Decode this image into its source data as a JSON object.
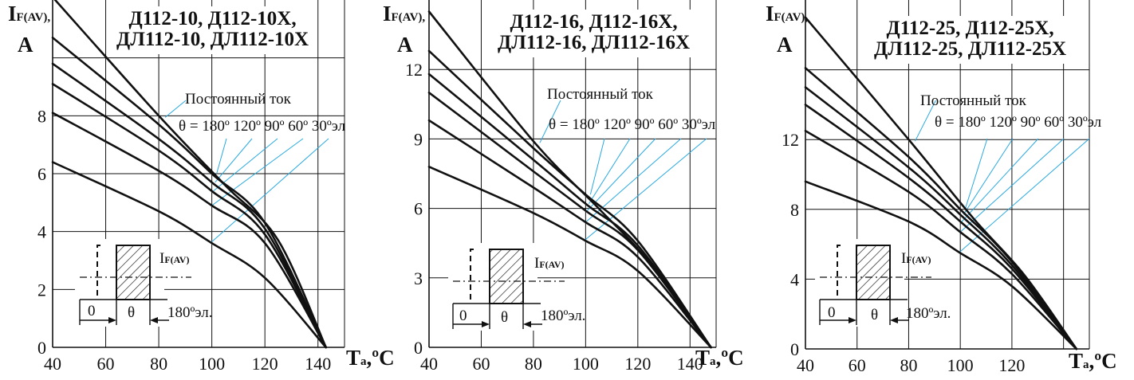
{
  "colors": {
    "curve": "#111111",
    "grid": "#111111",
    "guide": "#29a9e0"
  },
  "chart_data": [
    {
      "type": "line",
      "title_lines": [
        "Д112-10, Д112-10Х,",
        "ДЛ112-10, ДЛ112-10Х"
      ],
      "ylabel_main": "I",
      "ylabel_sub": "F(AV),",
      "ylabel_unit": "A",
      "xlabel_main": "T",
      "xlabel_sub": "a",
      "xlabel_unit": ",ºC",
      "xlim": [
        40,
        150
      ],
      "ylim": [
        0,
        12
      ],
      "xticks": [
        "40",
        "60",
        "80",
        "100",
        "120",
        "140"
      ],
      "yticks": [
        "0",
        "2",
        "4",
        "6",
        "8"
      ],
      "ytick_values": [
        0,
        2,
        4,
        6,
        8
      ],
      "xgrid": [
        40,
        60,
        80,
        100,
        120,
        140,
        150
      ],
      "ygrid": [
        0,
        2,
        4,
        6,
        8,
        10
      ],
      "dc_label": "Постоянный ток",
      "theta_label": "θ = 180º 120º 90º 60º 30ºэл",
      "inset_ifav": "I",
      "inset_ifav_sub": "F(AV)",
      "inset_zero": "0",
      "inset_theta": "θ",
      "inset_180": "180ºэл.",
      "series": [
        {
          "name": "Постоянный ток",
          "x": [
            40,
            80,
            105,
            125,
            143
          ],
          "y": [
            12.1,
            8.0,
            5.6,
            3.7,
            0
          ]
        },
        {
          "name": "θ = 180º",
          "x": [
            40,
            80,
            100,
            120,
            143
          ],
          "y": [
            10.7,
            7.7,
            6.0,
            4.3,
            0
          ]
        },
        {
          "name": "θ = 120º",
          "x": [
            40,
            80,
            100,
            120,
            143
          ],
          "y": [
            9.8,
            7.2,
            5.7,
            4.1,
            0
          ]
        },
        {
          "name": "θ = 90º",
          "x": [
            40,
            80,
            100,
            120,
            143
          ],
          "y": [
            9.1,
            6.8,
            5.4,
            3.9,
            0
          ]
        },
        {
          "name": "θ = 60º",
          "x": [
            40,
            80,
            100,
            120,
            143
          ],
          "y": [
            8.1,
            6.1,
            4.9,
            3.6,
            0
          ]
        },
        {
          "name": "θ = 30º",
          "x": [
            40,
            80,
            100,
            120,
            143
          ],
          "y": [
            6.4,
            4.7,
            3.6,
            2.4,
            0
          ]
        }
      ]
    },
    {
      "type": "line",
      "title_lines": [
        "Д112-16, Д112-16Х,",
        "ДЛ112-16, ДЛ112-16Х"
      ],
      "ylabel_main": "I",
      "ylabel_sub": "F(AV),",
      "ylabel_unit": "A",
      "xlabel_main": "T",
      "xlabel_sub": "a",
      "xlabel_unit": ",ºC",
      "xlim": [
        40,
        150
      ],
      "ylim": [
        0,
        15
      ],
      "xticks": [
        "40",
        "60",
        "80",
        "100",
        "120",
        "140"
      ],
      "yticks": [
        "0",
        "3",
        "6",
        "9",
        "12"
      ],
      "ytick_values": [
        0,
        3,
        6,
        9,
        12
      ],
      "xgrid": [
        40,
        60,
        80,
        100,
        120,
        140,
        150
      ],
      "ygrid": [
        0,
        3,
        6,
        9,
        12
      ],
      "dc_label": "Постоянный ток",
      "theta_label": "θ = 180º 120º 90º 60º 30ºэл",
      "inset_ifav": "I",
      "inset_ifav_sub": "F(AV)",
      "inset_zero": "0",
      "inset_theta": "θ",
      "inset_180": "180ºэл.",
      "series": [
        {
          "name": "Постоянный ток",
          "x": [
            40,
            80,
            105,
            125,
            148
          ],
          "y": [
            14.5,
            8.9,
            6.0,
            3.6,
            0
          ]
        },
        {
          "name": "θ = 180º",
          "x": [
            40,
            80,
            100,
            120,
            148
          ],
          "y": [
            12.8,
            8.6,
            6.6,
            4.6,
            0
          ]
        },
        {
          "name": "θ = 120º",
          "x": [
            40,
            80,
            100,
            120,
            148
          ],
          "y": [
            11.8,
            8.1,
            6.2,
            4.4,
            0
          ]
        },
        {
          "name": "θ = 90º",
          "x": [
            40,
            80,
            100,
            120,
            148
          ],
          "y": [
            11.0,
            7.6,
            5.9,
            4.2,
            0
          ]
        },
        {
          "name": "θ = 60º",
          "x": [
            40,
            80,
            100,
            120,
            148
          ],
          "y": [
            9.8,
            6.9,
            5.4,
            3.9,
            0
          ]
        },
        {
          "name": "θ = 30º",
          "x": [
            40,
            80,
            100,
            120,
            148
          ],
          "y": [
            7.8,
            5.8,
            4.6,
            3.3,
            0
          ]
        }
      ]
    },
    {
      "type": "line",
      "title_lines": [
        "Д112-25, Д112-25Х,",
        "ДЛ112-25, ДЛ112-25Х"
      ],
      "ylabel_main": "I",
      "ylabel_sub": "F(AV),",
      "ylabel_unit": "A",
      "xlabel_main": "T",
      "xlabel_sub": "a",
      "xlabel_unit": ",ºC",
      "xlim": [
        40,
        150
      ],
      "ylim": [
        0,
        20
      ],
      "xticks": [
        "40",
        "60",
        "80",
        "100",
        "120"
      ],
      "yticks": [
        "0",
        "4",
        "8",
        "12"
      ],
      "ytick_values": [
        0,
        4,
        8,
        12
      ],
      "xgrid": [
        40,
        60,
        80,
        100,
        120,
        140,
        150
      ],
      "ygrid": [
        0,
        4,
        8,
        12,
        16
      ],
      "dc_label": "Постоянный ток",
      "theta_label": "θ = 180º 120º 90º 60º 30ºэл",
      "inset_ifav": "I",
      "inset_ifav_sub": "F(AV)",
      "inset_zero": "0",
      "inset_theta": "θ",
      "inset_180": "180ºэл.",
      "series": [
        {
          "name": "Постоянный ток",
          "x": [
            40,
            80,
            105,
            125,
            145
          ],
          "y": [
            19.0,
            12.0,
            7.5,
            4.2,
            0
          ]
        },
        {
          "name": "θ = 180º",
          "x": [
            40,
            80,
            100,
            120,
            145
          ],
          "y": [
            16.1,
            11.0,
            8.0,
            5.0,
            0
          ]
        },
        {
          "name": "θ = 120º",
          "x": [
            40,
            80,
            100,
            120,
            145
          ],
          "y": [
            15.0,
            10.4,
            7.7,
            4.8,
            0
          ]
        },
        {
          "name": "θ = 90º",
          "x": [
            40,
            80,
            100,
            120,
            145
          ],
          "y": [
            14.0,
            9.8,
            7.3,
            4.6,
            0
          ]
        },
        {
          "name": "θ = 60º",
          "x": [
            40,
            80,
            100,
            120,
            145
          ],
          "y": [
            12.5,
            9.0,
            6.7,
            4.3,
            0
          ]
        },
        {
          "name": "θ = 30º",
          "x": [
            40,
            80,
            100,
            120,
            145
          ],
          "y": [
            9.6,
            7.3,
            5.5,
            3.6,
            0
          ]
        }
      ]
    }
  ]
}
